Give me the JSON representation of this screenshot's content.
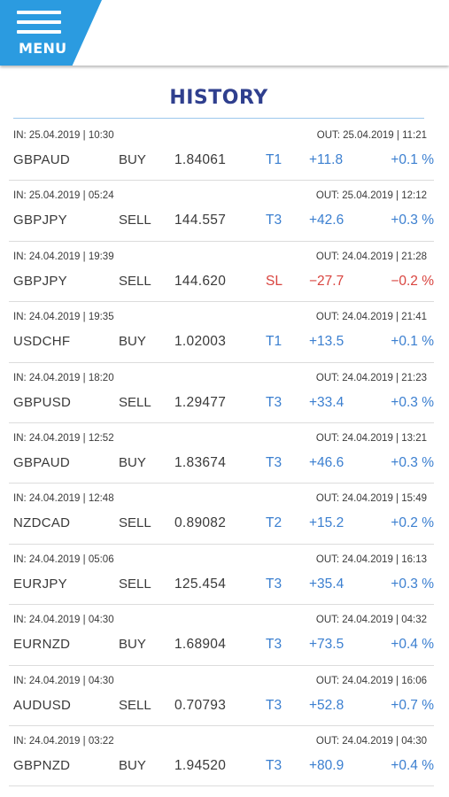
{
  "header": {
    "menu_label": "MENU"
  },
  "page": {
    "title": "HISTORY"
  },
  "colors": {
    "menu_bg": "#2b9be0",
    "title": "#2f3f8e",
    "profit": "#3b7fd0",
    "loss": "#d9443f"
  },
  "trades": [
    {
      "in": "IN: 25.04.2019 | 10:30",
      "out": "OUT: 25.04.2019 | 11:21",
      "pair": "GBPAUD",
      "side": "BUY",
      "price": "1.84061",
      "target": "T1",
      "pips": "+11.8",
      "pct": "+0.1 %",
      "loss": false
    },
    {
      "in": "IN: 25.04.2019 | 05:24",
      "out": "OUT: 25.04.2019 | 12:12",
      "pair": "GBPJPY",
      "side": "SELL",
      "price": "144.557",
      "target": "T3",
      "pips": "+42.6",
      "pct": "+0.3 %",
      "loss": false
    },
    {
      "in": "IN: 24.04.2019 | 19:39",
      "out": "OUT: 24.04.2019 | 21:28",
      "pair": "GBPJPY",
      "side": "SELL",
      "price": "144.620",
      "target": "SL",
      "pips": "−27.7",
      "pct": "−0.2 %",
      "loss": true
    },
    {
      "in": "IN: 24.04.2019 | 19:35",
      "out": "OUT: 24.04.2019 | 21:41",
      "pair": "USDCHF",
      "side": "BUY",
      "price": "1.02003",
      "target": "T1",
      "pips": "+13.5",
      "pct": "+0.1 %",
      "loss": false
    },
    {
      "in": "IN: 24.04.2019 | 18:20",
      "out": "OUT: 24.04.2019 | 21:23",
      "pair": "GBPUSD",
      "side": "SELL",
      "price": "1.29477",
      "target": "T3",
      "pips": "+33.4",
      "pct": "+0.3 %",
      "loss": false
    },
    {
      "in": "IN: 24.04.2019 | 12:52",
      "out": "OUT: 24.04.2019 | 13:21",
      "pair": "GBPAUD",
      "side": "BUY",
      "price": "1.83674",
      "target": "T3",
      "pips": "+46.6",
      "pct": "+0.3 %",
      "loss": false
    },
    {
      "in": "IN: 24.04.2019 | 12:48",
      "out": "OUT: 24.04.2019 | 15:49",
      "pair": "NZDCAD",
      "side": "SELL",
      "price": "0.89082",
      "target": "T2",
      "pips": "+15.2",
      "pct": "+0.2 %",
      "loss": false
    },
    {
      "in": "IN: 24.04.2019 | 05:06",
      "out": "OUT: 24.04.2019 | 16:13",
      "pair": "EURJPY",
      "side": "SELL",
      "price": "125.454",
      "target": "T3",
      "pips": "+35.4",
      "pct": "+0.3 %",
      "loss": false
    },
    {
      "in": "IN: 24.04.2019 | 04:30",
      "out": "OUT: 24.04.2019 | 04:32",
      "pair": "EURNZD",
      "side": "BUY",
      "price": "1.68904",
      "target": "T3",
      "pips": "+73.5",
      "pct": "+0.4 %",
      "loss": false
    },
    {
      "in": "IN: 24.04.2019 | 04:30",
      "out": "OUT: 24.04.2019 | 16:06",
      "pair": "AUDUSD",
      "side": "SELL",
      "price": "0.70793",
      "target": "T3",
      "pips": "+52.8",
      "pct": "+0.7 %",
      "loss": false
    },
    {
      "in": "IN: 24.04.2019 | 03:22",
      "out": "OUT: 24.04.2019 | 04:30",
      "pair": "GBPNZD",
      "side": "BUY",
      "price": "1.94520",
      "target": "T3",
      "pips": "+80.9",
      "pct": "+0.4 %",
      "loss": false
    }
  ]
}
